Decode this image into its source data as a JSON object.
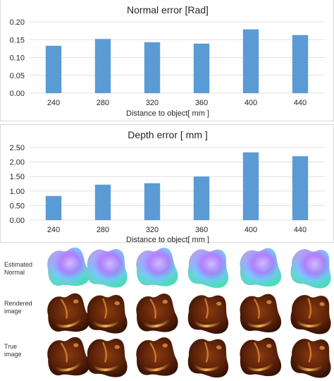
{
  "chart_data": [
    {
      "type": "bar",
      "title": "Normal error [Rad]",
      "xlabel": "Distance to object[ mm ]",
      "ylabel": "",
      "categories": [
        "240",
        "280",
        "320",
        "360",
        "400",
        "440"
      ],
      "values": [
        0.133,
        0.152,
        0.143,
        0.139,
        0.179,
        0.163
      ],
      "ylim": [
        0,
        0.2
      ],
      "yticks": [
        "0.00",
        "0.05",
        "0.10",
        "0.15",
        "0.20"
      ],
      "grid": true,
      "color": "#5b9bd5"
    },
    {
      "type": "bar",
      "title": "Depth error  [ mm ]",
      "xlabel": "Distance to object[ mm ]",
      "ylabel": "",
      "categories": [
        "240",
        "280",
        "320",
        "360",
        "400",
        "440"
      ],
      "values": [
        0.83,
        1.22,
        1.27,
        1.5,
        2.33,
        2.2
      ],
      "ylim": [
        0,
        2.5
      ],
      "yticks": [
        "0.00",
        "0.50",
        "1.00",
        "1.50",
        "2.00",
        "2.50"
      ],
      "grid": true,
      "color": "#5b9bd5"
    }
  ],
  "image_rows": [
    {
      "label": "Estimated Normal",
      "style": "normal"
    },
    {
      "label": "Rendered image",
      "style": "rendered"
    },
    {
      "label": "True image",
      "style": "true"
    }
  ]
}
